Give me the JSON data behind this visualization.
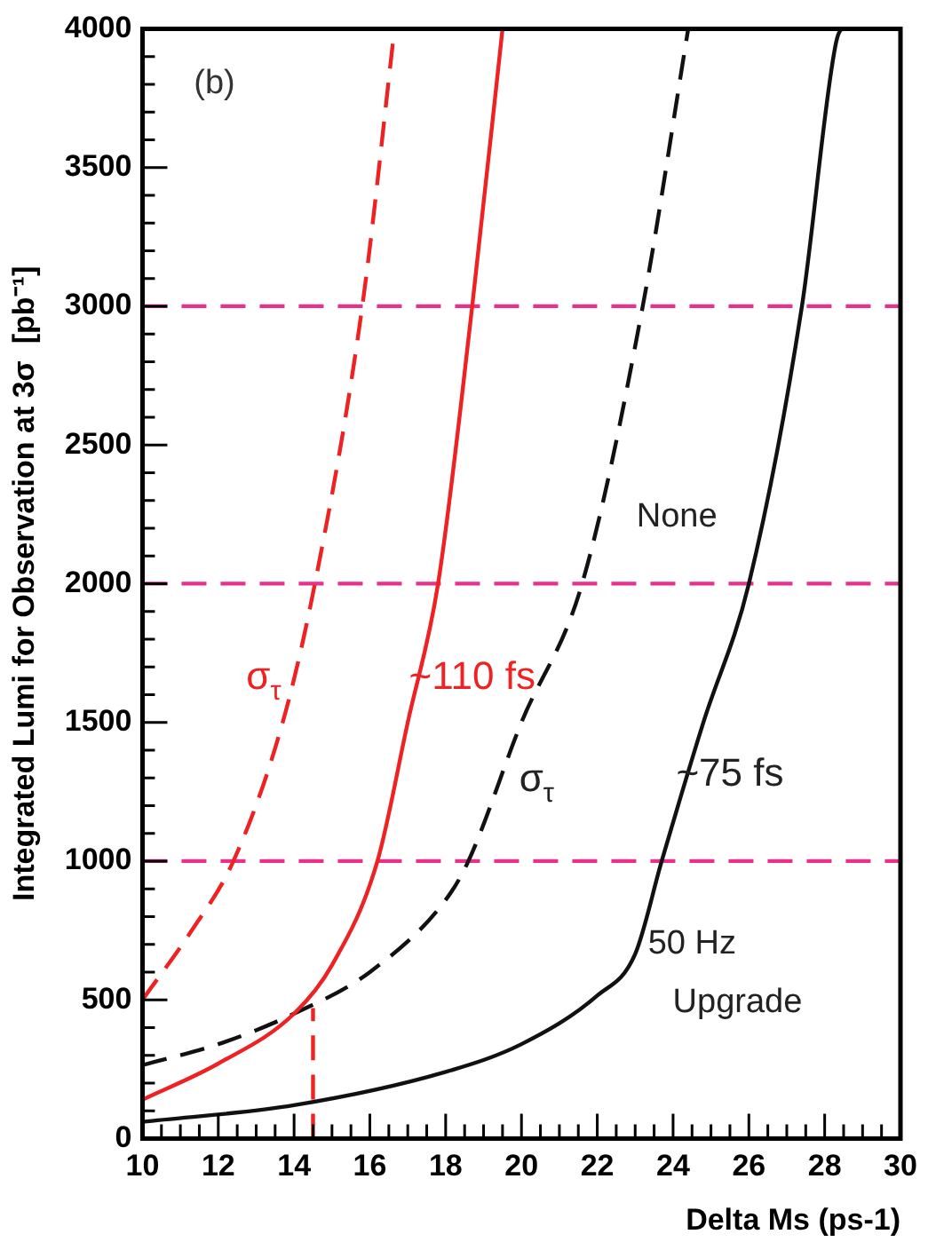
{
  "chart_data": {
    "type": "line",
    "xlabel": "Delta Ms (ps-1)",
    "ylabel": "Integrated Lumi for Observation at 3σ  [pb⁻¹]",
    "xlim": [
      10,
      30
    ],
    "xticks": [
      10,
      12,
      14,
      16,
      18,
      20,
      22,
      24,
      26,
      28,
      30
    ],
    "ylim": [
      0,
      4000
    ],
    "yticks": [
      0,
      500,
      1000,
      1500,
      2000,
      2500,
      3000,
      3500,
      4000
    ],
    "grid": false,
    "legend": false,
    "marker": "none",
    "series": [
      {
        "color": "#ee2222",
        "line_style": "dashed",
        "x": [
          10,
          11.3,
          12.4,
          13.7,
          14.55,
          15.8,
          16.65
        ],
        "values": [
          500,
          750,
          1000,
          1500,
          2000,
          3000,
          4000
        ]
      },
      {
        "color": "#ee2222",
        "line_style": "solid",
        "x": [
          10,
          12,
          14,
          15,
          16.2,
          17,
          17.8,
          18.7,
          19.5
        ],
        "values": [
          140,
          270,
          450,
          625,
          1000,
          1500,
          2000,
          3000,
          4000
        ]
      },
      {
        "color": "#111111",
        "line_style": "dashed",
        "x": [
          10,
          12,
          14,
          16,
          18,
          18.6,
          20,
          21.6,
          23.2,
          24.4
        ],
        "values": [
          265,
          340,
          450,
          600,
          860,
          1000,
          1500,
          2000,
          3000,
          4000
        ]
      },
      {
        "color": "#111111",
        "line_style": "solid",
        "x": [
          10,
          14,
          18,
          20,
          22,
          23,
          23.7,
          24.8,
          26,
          27.4,
          28.3,
          28.5,
          30
        ],
        "values": [
          60,
          120,
          240,
          340,
          515,
          665,
          1000,
          1500,
          2000,
          3000,
          3950,
          4000,
          4000
        ]
      },
      {
        "color": "#ee2222",
        "line_style": "dashed",
        "x": [
          14.5,
          14.5
        ],
        "values": [
          0,
          470
        ]
      }
    ],
    "ref_lines": [
      {
        "axis": "y",
        "value": 1000,
        "color": "#e8308c",
        "line_style": "dashed"
      },
      {
        "axis": "y",
        "value": 2000,
        "color": "#e8308c",
        "line_style": "dashed"
      },
      {
        "axis": "y",
        "value": 3000,
        "color": "#e8308c",
        "line_style": "dashed"
      }
    ],
    "annotations": [
      "(b)",
      "None",
      "σ$_{τ}$",
      "~110 fs",
      "σ$_{τ}$",
      "~75 fs",
      "50 Hz",
      "Upgrade"
    ]
  }
}
